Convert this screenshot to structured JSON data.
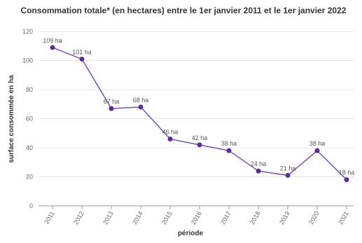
{
  "chart_data": {
    "type": "line",
    "title": "Consommation totale* (en hectares) entre le 1er janvier 2011 et le 1er janvier 2022",
    "xlabel": "période",
    "ylabel": "surface consommée en ha",
    "categories": [
      "2011",
      "2012",
      "2013",
      "2014",
      "2015",
      "2016",
      "2017",
      "2018",
      "2019",
      "2020",
      "2021"
    ],
    "values": [
      109,
      101,
      67,
      68,
      46,
      42,
      38,
      24,
      21,
      38,
      18
    ],
    "data_labels": [
      "109 ha",
      "101 ha",
      "67 ha",
      "68 ha",
      "46 ha",
      "42 ha",
      "38 ha",
      "24 ha",
      "21 ha",
      "38 ha",
      "18 ha"
    ],
    "ylim": [
      0,
      120
    ],
    "yticks": [
      0,
      20,
      40,
      60,
      80,
      100,
      120
    ],
    "grid": true,
    "colors": {
      "line": "#7b4fb0",
      "marker": "#5b2d90",
      "grid": "#e6e6e6"
    }
  }
}
